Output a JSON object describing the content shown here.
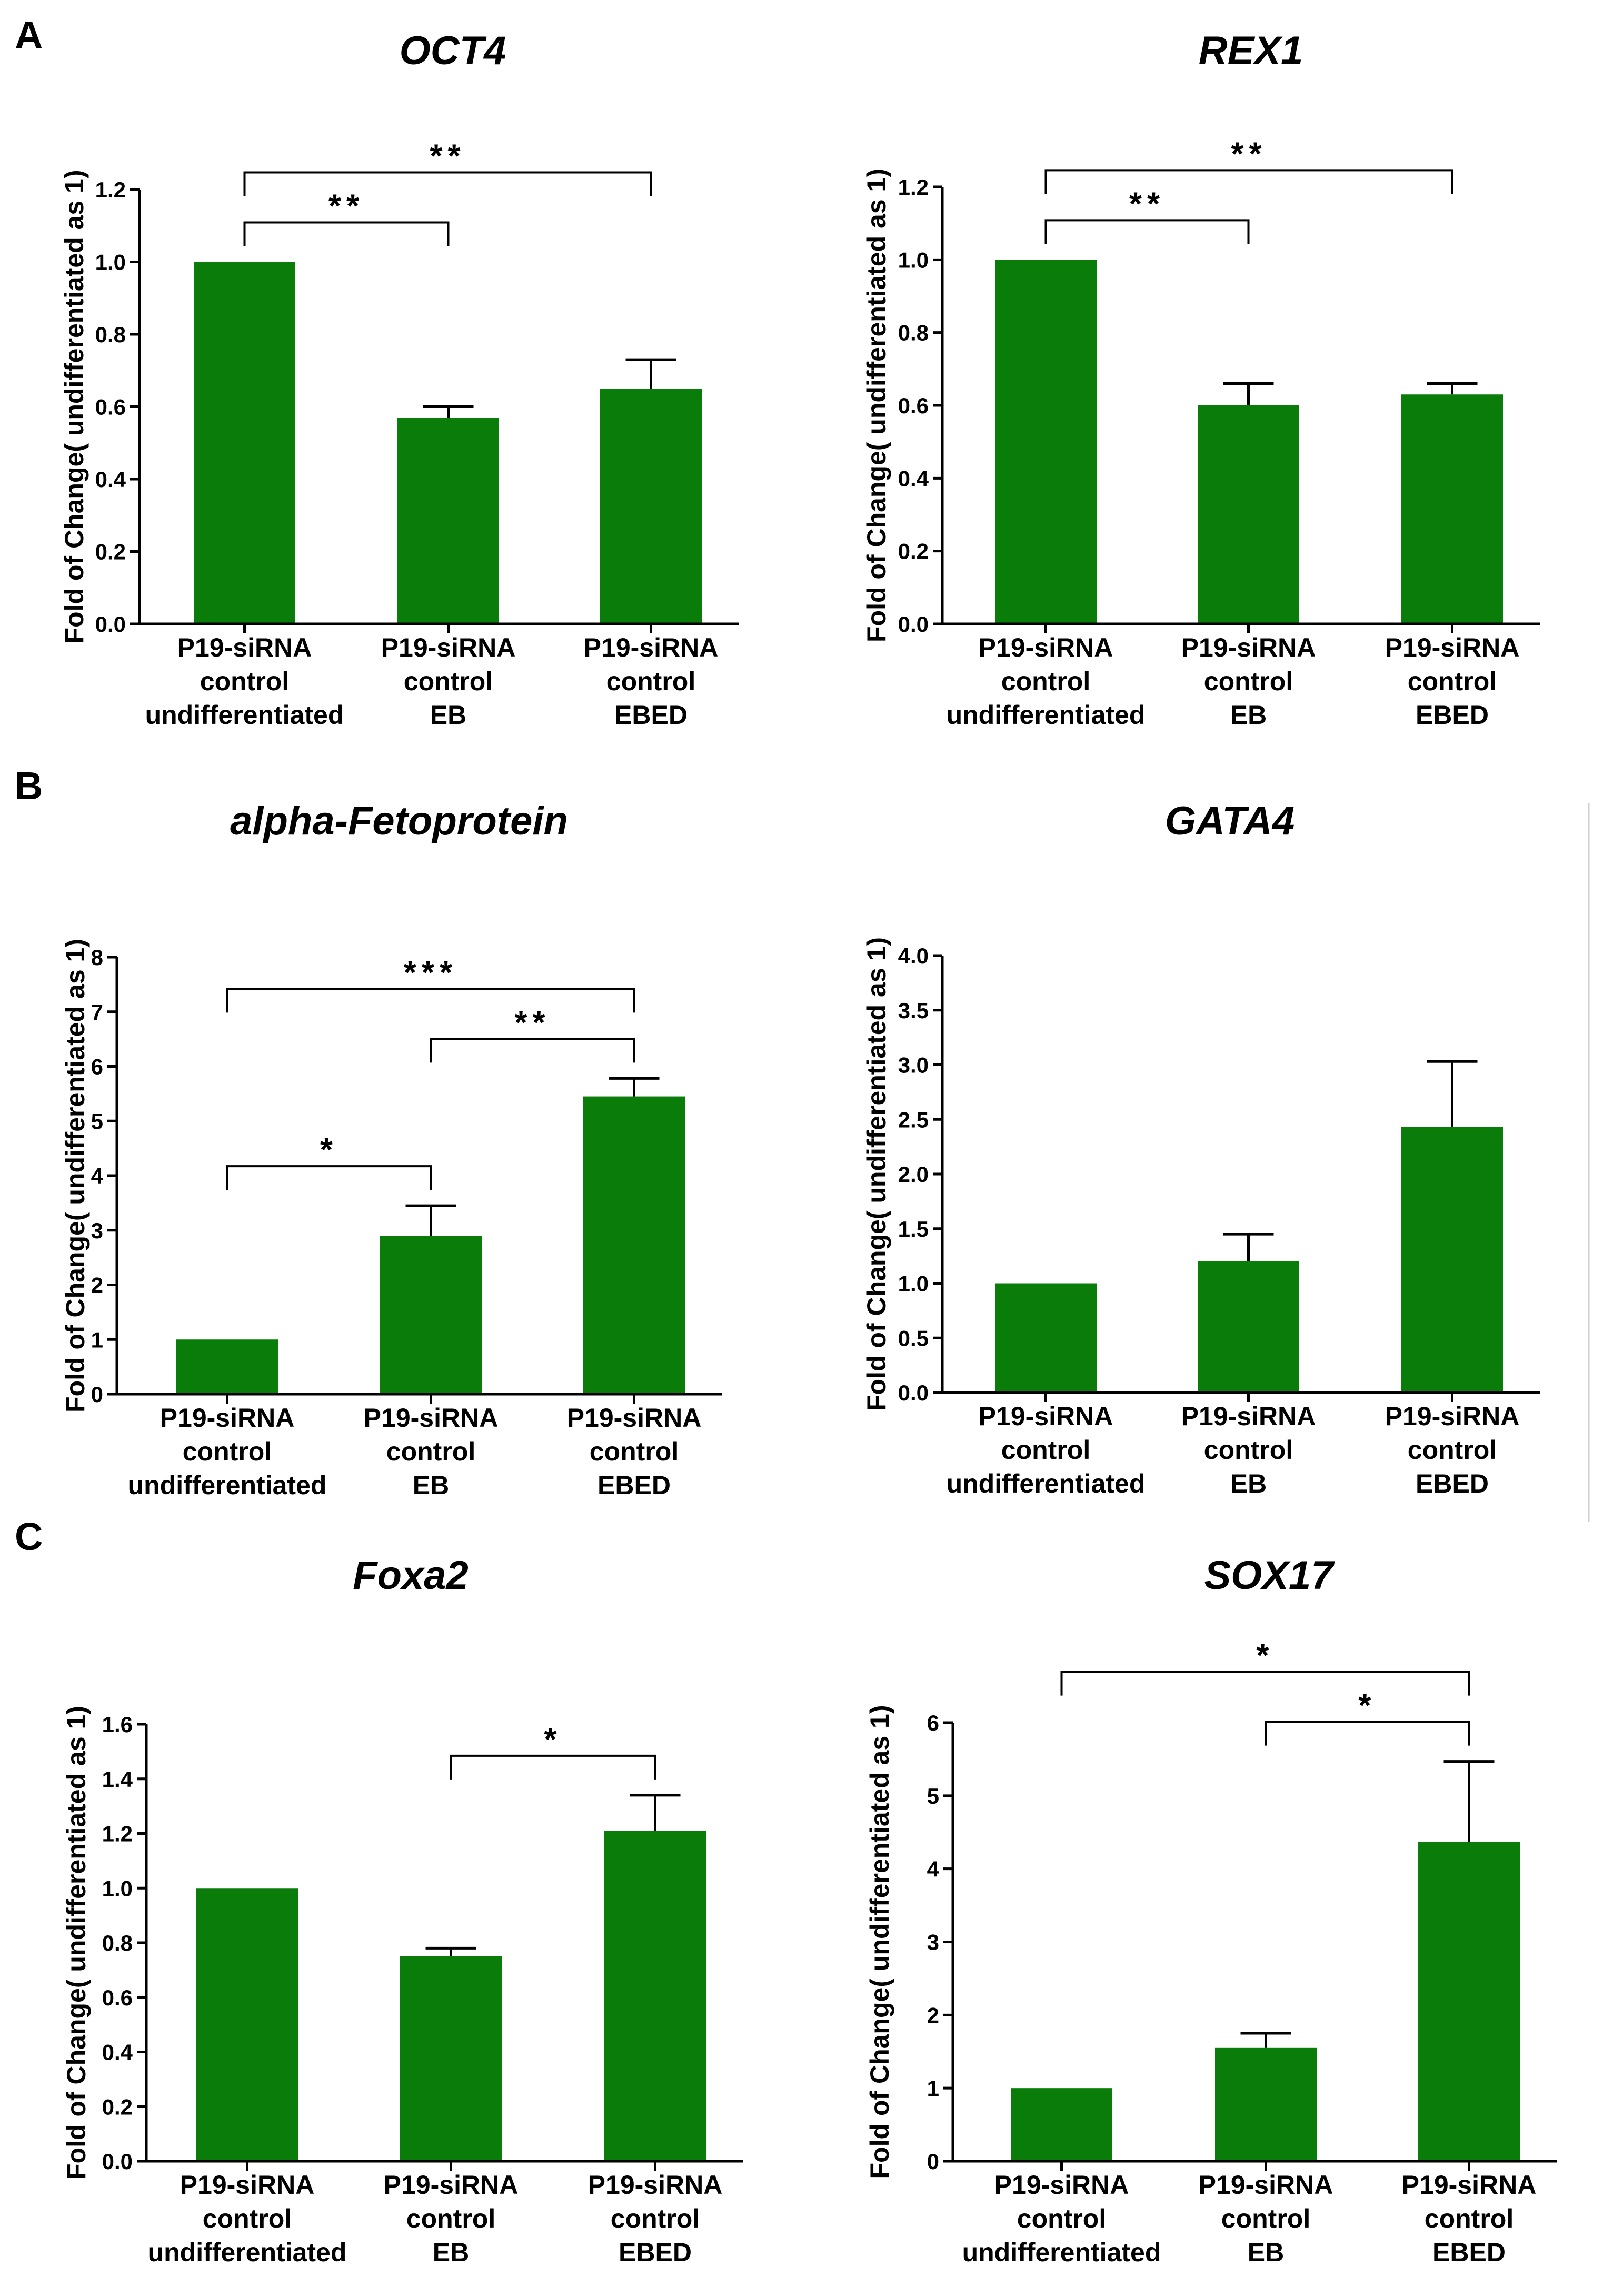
{
  "figure": {
    "panel_letters": [
      "A",
      "B",
      "C"
    ],
    "bar_color": "#0a7c0a",
    "divider_color": "#cfcfcf"
  },
  "chart_data": [
    {
      "type": "bar",
      "title": "OCT4",
      "ylabel": "Fold of Change( undifferentiated as 1)",
      "xlabel": "",
      "categories": [
        [
          "P19-siRNA",
          "control",
          "undifferentiated"
        ],
        [
          "P19-siRNA",
          "control",
          "EB"
        ],
        [
          "P19-siRNA",
          "control",
          "EBED"
        ]
      ],
      "values": [
        1.0,
        0.57,
        0.65
      ],
      "errors": [
        0.0,
        0.03,
        0.08
      ],
      "ylim": [
        0,
        1.2
      ],
      "yticks": [
        0,
        0.2,
        0.4,
        0.6,
        0.8,
        1.0,
        1.2
      ],
      "ytick_labels": [
        "0.0",
        "0.2",
        "0.4",
        "0.6",
        "0.8",
        "1.0",
        "1.2"
      ],
      "significance": [
        {
          "from": 0,
          "to": 1,
          "label": "**"
        },
        {
          "from": 0,
          "to": 2,
          "label": "**"
        }
      ]
    },
    {
      "type": "bar",
      "title": "REX1",
      "ylabel": "Fold of Change( undifferentiated as 1)",
      "xlabel": "",
      "categories": [
        [
          "P19-siRNA",
          "control",
          "undifferentiated"
        ],
        [
          "P19-siRNA",
          "control",
          "EB"
        ],
        [
          "P19-siRNA",
          "control",
          "EBED"
        ]
      ],
      "values": [
        1.0,
        0.6,
        0.63
      ],
      "errors": [
        0.0,
        0.06,
        0.03
      ],
      "ylim": [
        0,
        1.2
      ],
      "yticks": [
        0,
        0.2,
        0.4,
        0.6,
        0.8,
        1.0,
        1.2
      ],
      "ytick_labels": [
        "0.0",
        "0.2",
        "0.4",
        "0.6",
        "0.8",
        "1.0",
        "1.2"
      ],
      "significance": [
        {
          "from": 0,
          "to": 1,
          "label": "**"
        },
        {
          "from": 0,
          "to": 2,
          "label": "**"
        }
      ]
    },
    {
      "type": "bar",
      "title": "alpha-Fetoprotein",
      "ylabel": "Fold of Change( undifferentiated as 1)",
      "xlabel": "",
      "categories": [
        [
          "P19-siRNA",
          "control",
          "undifferentiated"
        ],
        [
          "P19-siRNA",
          "control",
          "EB"
        ],
        [
          "P19-siRNA",
          "control",
          "EBED"
        ]
      ],
      "values": [
        1.0,
        2.9,
        5.45
      ],
      "errors": [
        0.0,
        0.55,
        0.33
      ],
      "ylim": [
        0,
        8
      ],
      "yticks": [
        0,
        1,
        2,
        3,
        4,
        5,
        6,
        7,
        8
      ],
      "ytick_labels": [
        "0",
        "1",
        "2",
        "3",
        "4",
        "5",
        "6",
        "7",
        "8"
      ],
      "significance": [
        {
          "from": 0,
          "to": 1,
          "label": "*"
        },
        {
          "from": 0,
          "to": 2,
          "label": "***"
        },
        {
          "from": 1,
          "to": 2,
          "label": "**"
        }
      ]
    },
    {
      "type": "bar",
      "title": "GATA4",
      "ylabel": "Fold of Change( undifferentiated as 1)",
      "xlabel": "",
      "categories": [
        [
          "P19-siRNA",
          "control",
          "undifferentiated"
        ],
        [
          "P19-siRNA",
          "control",
          "EB"
        ],
        [
          "P19-siRNA",
          "control",
          "EBED"
        ]
      ],
      "values": [
        1.0,
        1.2,
        2.43
      ],
      "errors": [
        0.0,
        0.25,
        0.6
      ],
      "ylim": [
        0,
        4
      ],
      "yticks": [
        0,
        0.5,
        1,
        1.5,
        2,
        2.5,
        3,
        3.5,
        4
      ],
      "ytick_labels": [
        "0.0",
        "0.5",
        "1.0",
        "1.5",
        "2.0",
        "2.5",
        "3.0",
        "3.5",
        "4.0"
      ],
      "significance": []
    },
    {
      "type": "bar",
      "title": "Foxa2",
      "ylabel": "Fold of Change( undifferentiated as 1)",
      "xlabel": "",
      "categories": [
        [
          "P19-siRNA",
          "control",
          "undifferentiated"
        ],
        [
          "P19-siRNA",
          "control",
          "EB"
        ],
        [
          "P19-siRNA",
          "control",
          "EBED"
        ]
      ],
      "values": [
        1.0,
        0.75,
        1.21
      ],
      "errors": [
        0.0,
        0.03,
        0.13
      ],
      "ylim": [
        0,
        1.6
      ],
      "yticks": [
        0,
        0.2,
        0.4,
        0.6,
        0.8,
        1.0,
        1.2,
        1.4,
        1.6
      ],
      "ytick_labels": [
        "0.0",
        "0.2",
        "0.4",
        "0.6",
        "0.8",
        "1.0",
        "1.2",
        "1.4",
        "1.6"
      ],
      "significance": [
        {
          "from": 1,
          "to": 2,
          "label": "*"
        }
      ]
    },
    {
      "type": "bar",
      "title": "SOX17",
      "ylabel": "Fold of Change( undifferentiated as 1)",
      "xlabel": "",
      "categories": [
        [
          "P19-siRNA",
          "control",
          "undifferentiated"
        ],
        [
          "P19-siRNA",
          "control",
          "EB"
        ],
        [
          "P19-siRNA",
          "control",
          "EBED"
        ]
      ],
      "values": [
        1.0,
        1.55,
        4.37
      ],
      "errors": [
        0.0,
        0.2,
        1.1
      ],
      "ylim": [
        0,
        6
      ],
      "yticks": [
        0,
        1,
        2,
        3,
        4,
        5,
        6
      ],
      "ytick_labels": [
        "0",
        "1",
        "2",
        "3",
        "4",
        "5",
        "6"
      ],
      "significance": [
        {
          "from": 0,
          "to": 2,
          "label": "*"
        },
        {
          "from": 1,
          "to": 2,
          "label": "*"
        }
      ]
    }
  ]
}
